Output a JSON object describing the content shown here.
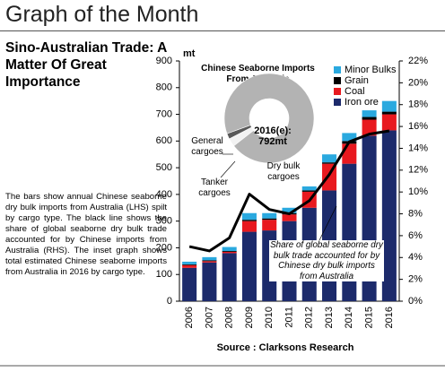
{
  "header": {
    "title": "Graph of the Month"
  },
  "article": {
    "heading": "Sino-Australian Trade: A Matter Of Great Importance",
    "body": "The bars show annual Chinese seaborne dry bulk imports from Australia (LHS) spilt by cargo type. The black line shows the share of global seaborne dry bulk trade accounted for by Chinese imports from Australia (RHS). The inset graph shows total estimated Chinese seaborne imports from Australia in 2016 by cargo type."
  },
  "chart_data": {
    "type": "bar",
    "stacked": true,
    "y_unit": "mt",
    "categories": [
      "2006",
      "2007",
      "2008",
      "2009",
      "2010",
      "2011",
      "2012",
      "2013",
      "2014",
      "2015",
      "2016"
    ],
    "series": [
      {
        "name": "Iron ore",
        "color": "#1c2a6b",
        "values": [
          125,
          145,
          180,
          260,
          265,
          300,
          350,
          415,
          515,
          620,
          640
        ]
      },
      {
        "name": "Coal",
        "color": "#e8191f",
        "values": [
          10,
          5,
          5,
          40,
          40,
          25,
          60,
          100,
          75,
          60,
          60
        ]
      },
      {
        "name": "Grain",
        "color": "#000000",
        "values": [
          3,
          3,
          3,
          5,
          5,
          5,
          5,
          5,
          10,
          10,
          10
        ]
      },
      {
        "name": "Minor Bulks",
        "color": "#2aa9df",
        "values": [
          10,
          12,
          15,
          25,
          20,
          20,
          15,
          30,
          30,
          25,
          40
        ]
      }
    ],
    "line_series": {
      "name": "Share of global seaborne dry bulk trade accounted for by Chinese dry bulk imports from Australia",
      "color": "#000000",
      "axis": "y2",
      "values": [
        5.0,
        4.6,
        5.8,
        9.8,
        8.4,
        8.0,
        9.2,
        11.6,
        14.6,
        15.3,
        15.6
      ]
    },
    "ylim": [
      0,
      900
    ],
    "yticks": [
      0,
      100,
      200,
      300,
      400,
      500,
      600,
      700,
      800,
      900
    ],
    "y2lim": [
      0,
      22
    ],
    "y2ticks": [
      {
        "value": 0,
        "label": "0%"
      },
      {
        "value": 2,
        "label": "2%"
      },
      {
        "value": 4,
        "label": "4%"
      },
      {
        "value": 6,
        "label": "6%"
      },
      {
        "value": 8,
        "label": "8%"
      },
      {
        "value": 10,
        "label": "10%"
      },
      {
        "value": 12,
        "label": "12%"
      },
      {
        "value": 14,
        "label": "14%"
      },
      {
        "value": 16,
        "label": "16%"
      },
      {
        "value": 18,
        "label": "18%"
      },
      {
        "value": 20,
        "label": "20%"
      },
      {
        "value": 22,
        "label": "22%"
      }
    ],
    "legend": "top-right",
    "inset": {
      "type": "pie",
      "title": "Chinese Seaborne Imports From Australia",
      "center_label": [
        "2016(e):",
        "792mt"
      ],
      "categories": [
        "General cargoes",
        "Tanker cargoes",
        "Dry bulk cargoes"
      ],
      "values": [
        3,
        2,
        95
      ],
      "colors": [
        "#f2f2f2",
        "#595959",
        "#b3b3b3"
      ]
    }
  },
  "source": "Source : Clarksons Research"
}
